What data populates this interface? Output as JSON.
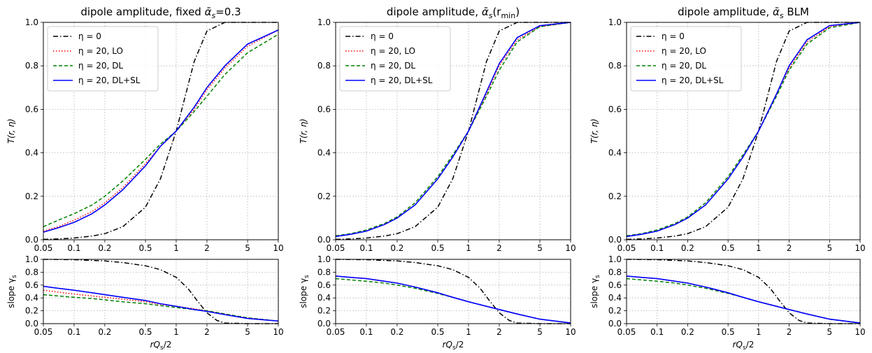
{
  "chart_data": [
    {
      "panel": "top-left",
      "type": "line",
      "title": "dipole amplitude, fixed ᾱ_s=0.3",
      "title_parts": [
        "dipole amplitude, fixed ",
        "ᾱ",
        "s",
        "=0.3"
      ],
      "xscale": "log",
      "xlim": [
        0.05,
        10
      ],
      "ylim": [
        0,
        1
      ],
      "xticks": [
        "0.05",
        "0.1",
        "0.2",
        "0.5",
        "1",
        "2",
        "5",
        "10"
      ],
      "yticks": [
        "0.0",
        "0.2",
        "0.4",
        "0.6",
        "0.8",
        "1.0"
      ],
      "ylabel": "T(r, η)",
      "xlabel": "",
      "grid": true,
      "legend": "top-left",
      "series": [
        {
          "name": "η = 0",
          "style": "dashdot",
          "color": "#000000",
          "x": [
            0.05,
            0.07,
            0.1,
            0.15,
            0.2,
            0.3,
            0.5,
            0.7,
            1,
            1.5,
            2,
            3,
            5,
            10
          ],
          "y": [
            0.002,
            0.004,
            0.008,
            0.017,
            0.028,
            0.06,
            0.15,
            0.28,
            0.5,
            0.82,
            0.96,
            1.0,
            1.0,
            1.0
          ]
        },
        {
          "name": "η = 20, LO",
          "style": "dotted",
          "color": "#ff0000",
          "x": [
            0.05,
            0.07,
            0.1,
            0.15,
            0.2,
            0.3,
            0.5,
            0.7,
            1,
            1.5,
            2,
            3,
            5,
            10
          ],
          "y": [
            0.04,
            0.06,
            0.09,
            0.13,
            0.17,
            0.24,
            0.35,
            0.43,
            0.5,
            0.6,
            0.69,
            0.79,
            0.89,
            0.965
          ]
        },
        {
          "name": "η = 20, DL",
          "style": "dashed",
          "color": "#008000",
          "x": [
            0.05,
            0.07,
            0.1,
            0.15,
            0.2,
            0.3,
            0.5,
            0.7,
            1,
            1.5,
            2,
            3,
            5,
            10
          ],
          "y": [
            0.06,
            0.09,
            0.12,
            0.16,
            0.2,
            0.27,
            0.37,
            0.44,
            0.5,
            0.59,
            0.66,
            0.76,
            0.86,
            0.945
          ]
        },
        {
          "name": "η = 20, DL+SL",
          "style": "solid",
          "color": "#0000ff",
          "x": [
            0.05,
            0.07,
            0.1,
            0.15,
            0.2,
            0.3,
            0.5,
            0.7,
            1,
            1.5,
            2,
            3,
            5,
            10
          ],
          "y": [
            0.035,
            0.055,
            0.08,
            0.12,
            0.16,
            0.23,
            0.34,
            0.43,
            0.5,
            0.61,
            0.7,
            0.8,
            0.9,
            0.965
          ]
        }
      ]
    },
    {
      "panel": "top-middle",
      "type": "line",
      "title": "dipole amplitude, ᾱ_s(r_min)",
      "title_parts": [
        "dipole amplitude, ",
        "ᾱ",
        "s",
        "(r",
        "min",
        ")"
      ],
      "xscale": "log",
      "xlim": [
        0.05,
        10
      ],
      "ylim": [
        0,
        1
      ],
      "xticks": [
        "0.05",
        "0.1",
        "0.2",
        "0.5",
        "1",
        "2",
        "5",
        "10"
      ],
      "yticks": [
        "0.0",
        "0.2",
        "0.4",
        "0.6",
        "0.8",
        "1.0"
      ],
      "ylabel": "T(r, η)",
      "xlabel": "",
      "grid": true,
      "legend": "top-left",
      "series": [
        {
          "name": "η = 0",
          "style": "dashdot",
          "color": "#000000",
          "x": [
            0.05,
            0.07,
            0.1,
            0.15,
            0.2,
            0.3,
            0.5,
            0.7,
            1,
            1.5,
            2,
            3,
            5,
            10
          ],
          "y": [
            0.002,
            0.004,
            0.008,
            0.017,
            0.028,
            0.06,
            0.15,
            0.28,
            0.5,
            0.82,
            0.96,
            1.0,
            1.0,
            1.0
          ]
        },
        {
          "name": "η = 20, LO",
          "style": "dotted",
          "color": "#ff0000",
          "x": [
            0.05,
            0.07,
            0.1,
            0.15,
            0.2,
            0.3,
            0.5,
            0.7,
            1,
            1.5,
            2,
            3,
            5,
            10
          ],
          "y": [
            0.015,
            0.025,
            0.04,
            0.07,
            0.1,
            0.16,
            0.28,
            0.38,
            0.5,
            0.67,
            0.8,
            0.92,
            0.98,
            1.0
          ]
        },
        {
          "name": "η = 20, DL",
          "style": "dashed",
          "color": "#008000",
          "x": [
            0.05,
            0.07,
            0.1,
            0.15,
            0.2,
            0.3,
            0.5,
            0.7,
            1,
            1.5,
            2,
            3,
            5,
            10
          ],
          "y": [
            0.018,
            0.028,
            0.045,
            0.075,
            0.105,
            0.17,
            0.29,
            0.39,
            0.5,
            0.66,
            0.78,
            0.91,
            0.98,
            1.0
          ]
        },
        {
          "name": "η = 20, DL+SL",
          "style": "solid",
          "color": "#0000ff",
          "x": [
            0.05,
            0.07,
            0.1,
            0.15,
            0.2,
            0.3,
            0.5,
            0.7,
            1,
            1.5,
            2,
            3,
            5,
            10
          ],
          "y": [
            0.015,
            0.025,
            0.04,
            0.07,
            0.1,
            0.16,
            0.28,
            0.38,
            0.5,
            0.68,
            0.81,
            0.93,
            0.985,
            1.0
          ]
        }
      ]
    },
    {
      "panel": "top-right",
      "type": "line",
      "title": "dipole amplitude, ᾱ_s BLM",
      "title_parts": [
        "dipole amplitude, ",
        "ᾱ",
        "s",
        " BLM"
      ],
      "xscale": "log",
      "xlim": [
        0.05,
        10
      ],
      "ylim": [
        0,
        1
      ],
      "xticks": [
        "0.05",
        "0.1",
        "0.2",
        "0.5",
        "1",
        "2",
        "5",
        "10"
      ],
      "yticks": [
        "0.0",
        "0.2",
        "0.4",
        "0.6",
        "0.8",
        "1.0"
      ],
      "ylabel": "T(r, η)",
      "xlabel": "",
      "grid": true,
      "legend": "top-left",
      "series": [
        {
          "name": "η = 0",
          "style": "dashdot",
          "color": "#000000",
          "x": [
            0.05,
            0.07,
            0.1,
            0.15,
            0.2,
            0.3,
            0.5,
            0.7,
            1,
            1.5,
            2,
            3,
            5,
            10
          ],
          "y": [
            0.002,
            0.004,
            0.008,
            0.017,
            0.028,
            0.06,
            0.15,
            0.28,
            0.5,
            0.82,
            0.96,
            1.0,
            1.0,
            1.0
          ]
        },
        {
          "name": "η = 20, LO",
          "style": "dotted",
          "color": "#ff0000",
          "x": [
            0.05,
            0.07,
            0.1,
            0.15,
            0.2,
            0.3,
            0.5,
            0.7,
            1,
            1.5,
            2,
            3,
            5,
            10
          ],
          "y": [
            0.015,
            0.025,
            0.04,
            0.07,
            0.1,
            0.16,
            0.28,
            0.38,
            0.5,
            0.67,
            0.79,
            0.91,
            0.98,
            1.0
          ]
        },
        {
          "name": "η = 20, DL",
          "style": "dashed",
          "color": "#008000",
          "x": [
            0.05,
            0.07,
            0.1,
            0.15,
            0.2,
            0.3,
            0.5,
            0.7,
            1,
            1.5,
            2,
            3,
            5,
            10
          ],
          "y": [
            0.018,
            0.028,
            0.045,
            0.075,
            0.105,
            0.17,
            0.29,
            0.39,
            0.5,
            0.66,
            0.78,
            0.9,
            0.975,
            1.0
          ]
        },
        {
          "name": "η = 20, DL+SL",
          "style": "solid",
          "color": "#0000ff",
          "x": [
            0.05,
            0.07,
            0.1,
            0.15,
            0.2,
            0.3,
            0.5,
            0.7,
            1,
            1.5,
            2,
            3,
            5,
            10
          ],
          "y": [
            0.015,
            0.025,
            0.04,
            0.07,
            0.1,
            0.16,
            0.28,
            0.38,
            0.5,
            0.67,
            0.8,
            0.92,
            0.985,
            1.0
          ]
        }
      ]
    },
    {
      "panel": "bottom-left",
      "type": "line",
      "title": "",
      "xscale": "log",
      "xlim": [
        0.05,
        10
      ],
      "ylim": [
        0,
        1
      ],
      "xticks": [
        "0.05",
        "0.1",
        "0.2",
        "0.5",
        "1",
        "2",
        "5",
        "10"
      ],
      "yticks": [
        "0.0",
        "0.2",
        "0.4",
        "0.6",
        "0.8",
        "1.0"
      ],
      "ylabel": "slope γ_s",
      "xlabel": "rQ_s/2",
      "grid": true,
      "legend": "none",
      "series": [
        {
          "name": "η = 0",
          "style": "dashdot",
          "color": "#000000",
          "x": [
            0.05,
            0.1,
            0.2,
            0.3,
            0.5,
            0.7,
            1,
            1.3,
            1.6,
            2,
            2.5,
            3,
            5,
            10
          ],
          "y": [
            1.0,
            0.995,
            0.975,
            0.95,
            0.9,
            0.84,
            0.72,
            0.55,
            0.36,
            0.17,
            0.05,
            0.01,
            0.0,
            0.0
          ]
        },
        {
          "name": "η = 20, LO",
          "style": "dotted",
          "color": "#ff0000",
          "x": [
            0.05,
            0.07,
            0.1,
            0.15,
            0.2,
            0.3,
            0.5,
            0.7,
            1,
            1.5,
            2,
            3,
            5,
            10
          ],
          "y": [
            0.52,
            0.49,
            0.46,
            0.43,
            0.41,
            0.38,
            0.34,
            0.3,
            0.27,
            0.23,
            0.2,
            0.15,
            0.09,
            0.04
          ]
        },
        {
          "name": "η = 20, DL",
          "style": "dashed",
          "color": "#008000",
          "x": [
            0.05,
            0.07,
            0.1,
            0.15,
            0.2,
            0.3,
            0.5,
            0.7,
            1,
            1.5,
            2,
            3,
            5,
            10
          ],
          "y": [
            0.45,
            0.43,
            0.41,
            0.39,
            0.37,
            0.34,
            0.31,
            0.28,
            0.25,
            0.22,
            0.2,
            0.15,
            0.09,
            0.04
          ]
        },
        {
          "name": "η = 20, DL+SL",
          "style": "solid",
          "color": "#0000ff",
          "x": [
            0.05,
            0.07,
            0.1,
            0.15,
            0.2,
            0.3,
            0.5,
            0.7,
            1,
            1.5,
            2,
            3,
            5,
            10
          ],
          "y": [
            0.58,
            0.55,
            0.52,
            0.48,
            0.45,
            0.41,
            0.36,
            0.31,
            0.27,
            0.22,
            0.19,
            0.14,
            0.08,
            0.04
          ]
        }
      ]
    },
    {
      "panel": "bottom-middle",
      "type": "line",
      "title": "",
      "xscale": "log",
      "xlim": [
        0.05,
        10
      ],
      "ylim": [
        0,
        1
      ],
      "xticks": [
        "0.05",
        "0.1",
        "0.2",
        "0.5",
        "1",
        "2",
        "5",
        "10"
      ],
      "yticks": [
        "0.0",
        "0.2",
        "0.4",
        "0.6",
        "0.8",
        "1.0"
      ],
      "ylabel": "slope γ_s",
      "xlabel": "rQ_s/2",
      "grid": true,
      "legend": "none",
      "series": [
        {
          "name": "η = 0",
          "style": "dashdot",
          "color": "#000000",
          "x": [
            0.05,
            0.1,
            0.2,
            0.3,
            0.5,
            0.7,
            1,
            1.3,
            1.6,
            2,
            2.5,
            3,
            5,
            10
          ],
          "y": [
            1.0,
            0.995,
            0.975,
            0.95,
            0.9,
            0.84,
            0.72,
            0.55,
            0.36,
            0.17,
            0.05,
            0.01,
            0.0,
            0.0
          ]
        },
        {
          "name": "η = 20, LO",
          "style": "dotted",
          "color": "#ff0000",
          "x": [
            0.05,
            0.07,
            0.1,
            0.15,
            0.2,
            0.3,
            0.5,
            0.7,
            1,
            1.5,
            2,
            3,
            5,
            10
          ],
          "y": [
            0.74,
            0.72,
            0.7,
            0.66,
            0.63,
            0.57,
            0.48,
            0.41,
            0.34,
            0.27,
            0.22,
            0.15,
            0.07,
            0.01
          ]
        },
        {
          "name": "η = 20, DL",
          "style": "dashed",
          "color": "#008000",
          "x": [
            0.05,
            0.07,
            0.1,
            0.15,
            0.2,
            0.3,
            0.5,
            0.7,
            1,
            1.5,
            2,
            3,
            5,
            10
          ],
          "y": [
            0.7,
            0.68,
            0.66,
            0.63,
            0.6,
            0.55,
            0.47,
            0.41,
            0.34,
            0.27,
            0.22,
            0.15,
            0.07,
            0.01
          ]
        },
        {
          "name": "η = 20, DL+SL",
          "style": "solid",
          "color": "#0000ff",
          "x": [
            0.05,
            0.07,
            0.1,
            0.15,
            0.2,
            0.3,
            0.5,
            0.7,
            1,
            1.5,
            2,
            3,
            5,
            10
          ],
          "y": [
            0.74,
            0.72,
            0.7,
            0.66,
            0.63,
            0.57,
            0.48,
            0.41,
            0.34,
            0.27,
            0.22,
            0.15,
            0.07,
            0.01
          ]
        }
      ]
    },
    {
      "panel": "bottom-right",
      "type": "line",
      "title": "",
      "xscale": "log",
      "xlim": [
        0.05,
        10
      ],
      "ylim": [
        0,
        1
      ],
      "xticks": [
        "0.05",
        "0.1",
        "0.2",
        "0.5",
        "1",
        "2",
        "5",
        "10"
      ],
      "yticks": [
        "0.0",
        "0.2",
        "0.4",
        "0.6",
        "0.8",
        "1.0"
      ],
      "ylabel": "slope γ_s",
      "xlabel": "rQ_s/2",
      "grid": true,
      "legend": "none",
      "series": [
        {
          "name": "η = 0",
          "style": "dashdot",
          "color": "#000000",
          "x": [
            0.05,
            0.1,
            0.2,
            0.3,
            0.5,
            0.7,
            1,
            1.3,
            1.6,
            2,
            2.5,
            3,
            5,
            10
          ],
          "y": [
            1.0,
            0.995,
            0.975,
            0.95,
            0.9,
            0.84,
            0.72,
            0.55,
            0.36,
            0.17,
            0.05,
            0.01,
            0.0,
            0.0
          ]
        },
        {
          "name": "η = 20, LO",
          "style": "dotted",
          "color": "#ff0000",
          "x": [
            0.05,
            0.07,
            0.1,
            0.15,
            0.2,
            0.3,
            0.5,
            0.7,
            1,
            1.5,
            2,
            3,
            5,
            10
          ],
          "y": [
            0.74,
            0.72,
            0.7,
            0.66,
            0.63,
            0.57,
            0.48,
            0.41,
            0.34,
            0.27,
            0.22,
            0.15,
            0.07,
            0.01
          ]
        },
        {
          "name": "η = 20, DL",
          "style": "dashed",
          "color": "#008000",
          "x": [
            0.05,
            0.07,
            0.1,
            0.15,
            0.2,
            0.3,
            0.5,
            0.7,
            1,
            1.5,
            2,
            3,
            5,
            10
          ],
          "y": [
            0.7,
            0.68,
            0.66,
            0.63,
            0.6,
            0.55,
            0.47,
            0.41,
            0.34,
            0.27,
            0.22,
            0.15,
            0.07,
            0.01
          ]
        },
        {
          "name": "η = 20, DL+SL",
          "style": "solid",
          "color": "#0000ff",
          "x": [
            0.05,
            0.07,
            0.1,
            0.15,
            0.2,
            0.3,
            0.5,
            0.7,
            1,
            1.5,
            2,
            3,
            5,
            10
          ],
          "y": [
            0.74,
            0.72,
            0.7,
            0.66,
            0.63,
            0.57,
            0.48,
            0.41,
            0.34,
            0.27,
            0.22,
            0.15,
            0.07,
            0.01
          ]
        }
      ]
    }
  ]
}
